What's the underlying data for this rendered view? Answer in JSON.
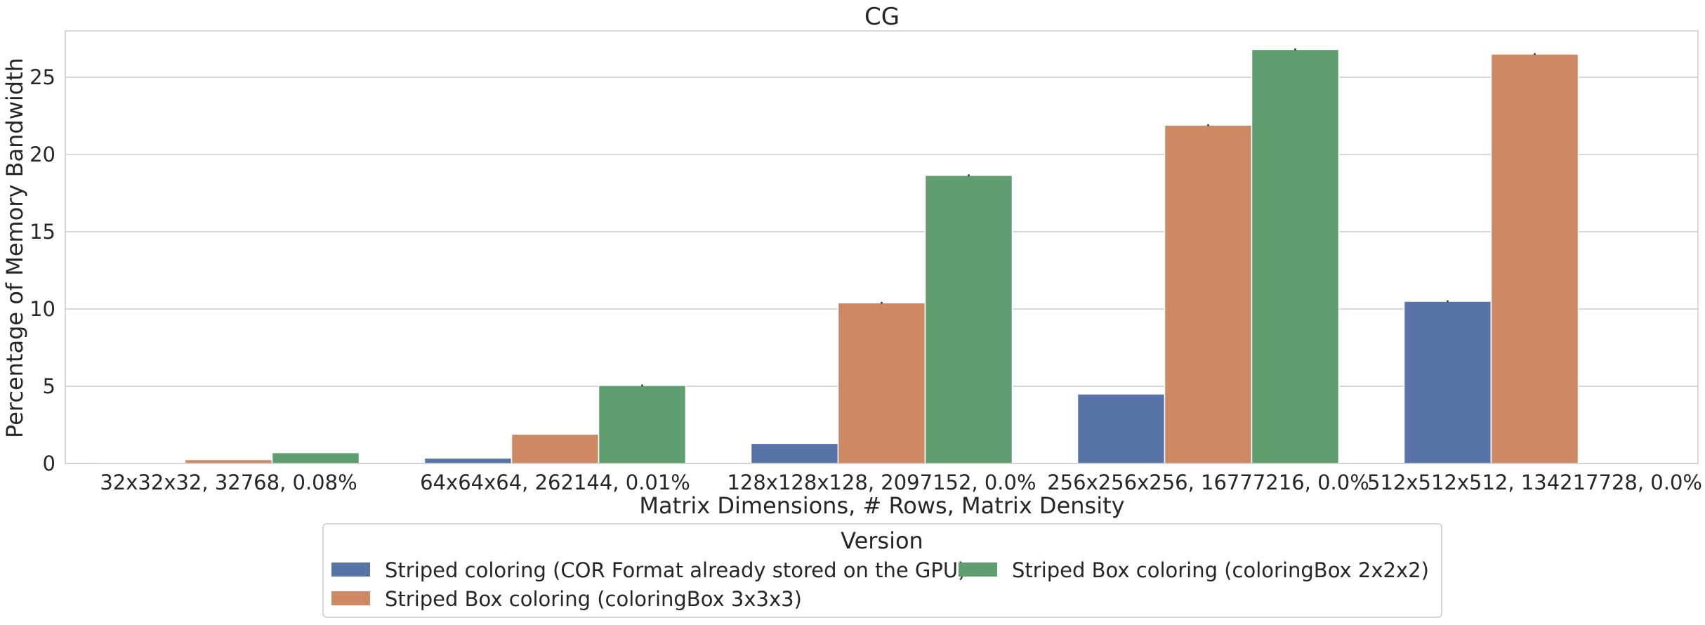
{
  "chart_data": {
    "type": "bar",
    "title": "CG",
    "xlabel": "Matrix Dimensions, # Rows, Matrix Density",
    "ylabel": "Percentage of Memory Bandwidth",
    "categories": [
      "32x32x32, 32768, 0.08%",
      "64x64x64, 262144, 0.01%",
      "128x128x128, 2097152, 0.0%",
      "256x256x256, 16777216, 0.0%",
      "512x512x512, 134217728, 0.0%"
    ],
    "series": [
      {
        "name": "Striped coloring (COR Format already stored on the GPU)",
        "color": "#5874a6",
        "values": [
          0.04,
          0.35,
          1.3,
          4.5,
          10.5
        ],
        "errors": [
          0,
          0,
          0,
          0,
          0.06
        ]
      },
      {
        "name": "Striped Box coloring (coloringBox 3x3x3)",
        "color": "#cc8963",
        "values": [
          0.25,
          1.9,
          10.4,
          21.9,
          26.5
        ],
        "errors": [
          0,
          0,
          0.06,
          0.06,
          0.06
        ]
      },
      {
        "name": "Striped Box coloring (coloringBox 2x2x2)",
        "color": "#5f9e6e",
        "values": [
          0.7,
          5.05,
          18.65,
          26.8,
          null
        ],
        "errors": [
          0,
          0.06,
          0.06,
          0.06,
          0
        ]
      }
    ],
    "ylim": [
      0,
      28
    ],
    "yticks": [
      0,
      5,
      10,
      15,
      20,
      25
    ],
    "grid": true,
    "legend": {
      "title": "Version",
      "placement": "bottom-center",
      "columns": 2
    }
  }
}
